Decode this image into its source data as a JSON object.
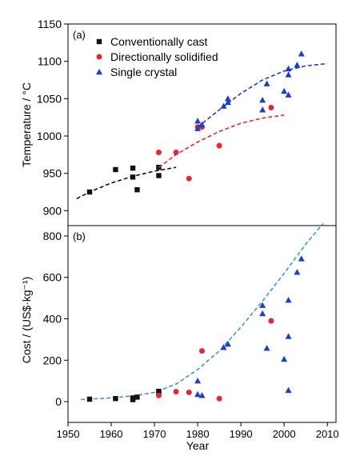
{
  "chart_data": [
    {
      "panel_label": "(a)",
      "type": "scatter",
      "xlim": [
        1950,
        2012
      ],
      "ylim": [
        880,
        1150
      ],
      "yticks": [
        900,
        950,
        1000,
        1050,
        1100,
        1150
      ],
      "ylabel": "Temperature / °C",
      "grid": false,
      "legend_position": "top-left",
      "series": [
        {
          "name": "Conventionally cast",
          "marker": "square",
          "color": "#111111",
          "points": [
            [
              1955,
              925
            ],
            [
              1961,
              955
            ],
            [
              1965,
              957
            ],
            [
              1965,
              945
            ],
            [
              1966,
              928
            ],
            [
              1971,
              958
            ],
            [
              1971,
              947
            ]
          ],
          "trend": [
            [
              1952,
              916
            ],
            [
              1955,
              925
            ],
            [
              1960,
              937
            ],
            [
              1965,
              946
            ],
            [
              1970,
              953
            ],
            [
              1975,
              958
            ]
          ]
        },
        {
          "name": "Directionally solidified",
          "marker": "circle",
          "color": "#e0283a",
          "points": [
            [
              1971,
              978
            ],
            [
              1975,
              978
            ],
            [
              1978,
              943
            ],
            [
              1980,
              1012
            ],
            [
              1981,
              1012
            ],
            [
              1985,
              987
            ],
            [
              1997,
              1038
            ]
          ],
          "trend": [
            [
              1971,
              958
            ],
            [
              1975,
              975
            ],
            [
              1980,
              992
            ],
            [
              1985,
              1006
            ],
            [
              1990,
              1017
            ],
            [
              1995,
              1024
            ],
            [
              2000,
              1028
            ]
          ]
        },
        {
          "name": "Single crystal",
          "marker": "triangle",
          "color": "#1f3fbf",
          "points": [
            [
              1980,
              1020
            ],
            [
              1980,
              1010
            ],
            [
              1981,
              1015
            ],
            [
              1986,
              1040
            ],
            [
              1987,
              1050
            ],
            [
              1987,
              1045
            ],
            [
              1995,
              1048
            ],
            [
              1995,
              1035
            ],
            [
              1996,
              1070
            ],
            [
              2000,
              1060
            ],
            [
              2001,
              1090
            ],
            [
              2001,
              1082
            ],
            [
              2001,
              1055
            ],
            [
              2003,
              1095
            ],
            [
              2004,
              1110
            ]
          ],
          "trend": [
            [
              1980,
              1012
            ],
            [
              1985,
              1035
            ],
            [
              1990,
              1057
            ],
            [
              1995,
              1075
            ],
            [
              2000,
              1087
            ],
            [
              2005,
              1094
            ],
            [
              2010,
              1097
            ]
          ]
        }
      ]
    },
    {
      "panel_label": "(b)",
      "type": "scatter",
      "xlim": [
        1950,
        2012
      ],
      "ylim": [
        -100,
        850
      ],
      "yticks": [
        0,
        200,
        400,
        600,
        800
      ],
      "xticks": [
        1950,
        1960,
        1970,
        1980,
        1990,
        2000,
        2010
      ],
      "xlabel": "Year",
      "ylabel": "Cost / (US$·kg⁻¹)",
      "grid": false,
      "series": [
        {
          "name": "Conventionally cast",
          "marker": "square",
          "color": "#111111",
          "points": [
            [
              1955,
              12
            ],
            [
              1961,
              15
            ],
            [
              1965,
              18
            ],
            [
              1965,
              10
            ],
            [
              1966,
              22
            ],
            [
              1971,
              50
            ],
            [
              1971,
              42
            ]
          ]
        },
        {
          "name": "Directionally solidified",
          "marker": "circle",
          "color": "#e0283a",
          "points": [
            [
              1971,
              30
            ],
            [
              1975,
              48
            ],
            [
              1978,
              45
            ],
            [
              1981,
              245
            ],
            [
              1985,
              15
            ],
            [
              1997,
              390
            ]
          ]
        },
        {
          "name": "Single crystal",
          "marker": "triangle",
          "color": "#1f3fbf",
          "points": [
            [
              1980,
              100
            ],
            [
              1980,
              35
            ],
            [
              1981,
              30
            ],
            [
              1986,
              262
            ],
            [
              1987,
              278
            ],
            [
              1995,
              465
            ],
            [
              1995,
              425
            ],
            [
              1996,
              258
            ],
            [
              2000,
              205
            ],
            [
              2001,
              490
            ],
            [
              2001,
              315
            ],
            [
              2001,
              55
            ],
            [
              2003,
              625
            ],
            [
              2004,
              690
            ]
          ]
        }
      ],
      "trend": {
        "color": "#4a90d9",
        "points": [
          [
            1953,
            10
          ],
          [
            1960,
            18
          ],
          [
            1965,
            28
          ],
          [
            1970,
            45
          ],
          [
            1975,
            85
          ],
          [
            1980,
            155
          ],
          [
            1985,
            245
          ],
          [
            1990,
            360
          ],
          [
            1995,
            485
          ],
          [
            2000,
            620
          ],
          [
            2005,
            760
          ],
          [
            2009,
            860
          ]
        ]
      }
    }
  ]
}
